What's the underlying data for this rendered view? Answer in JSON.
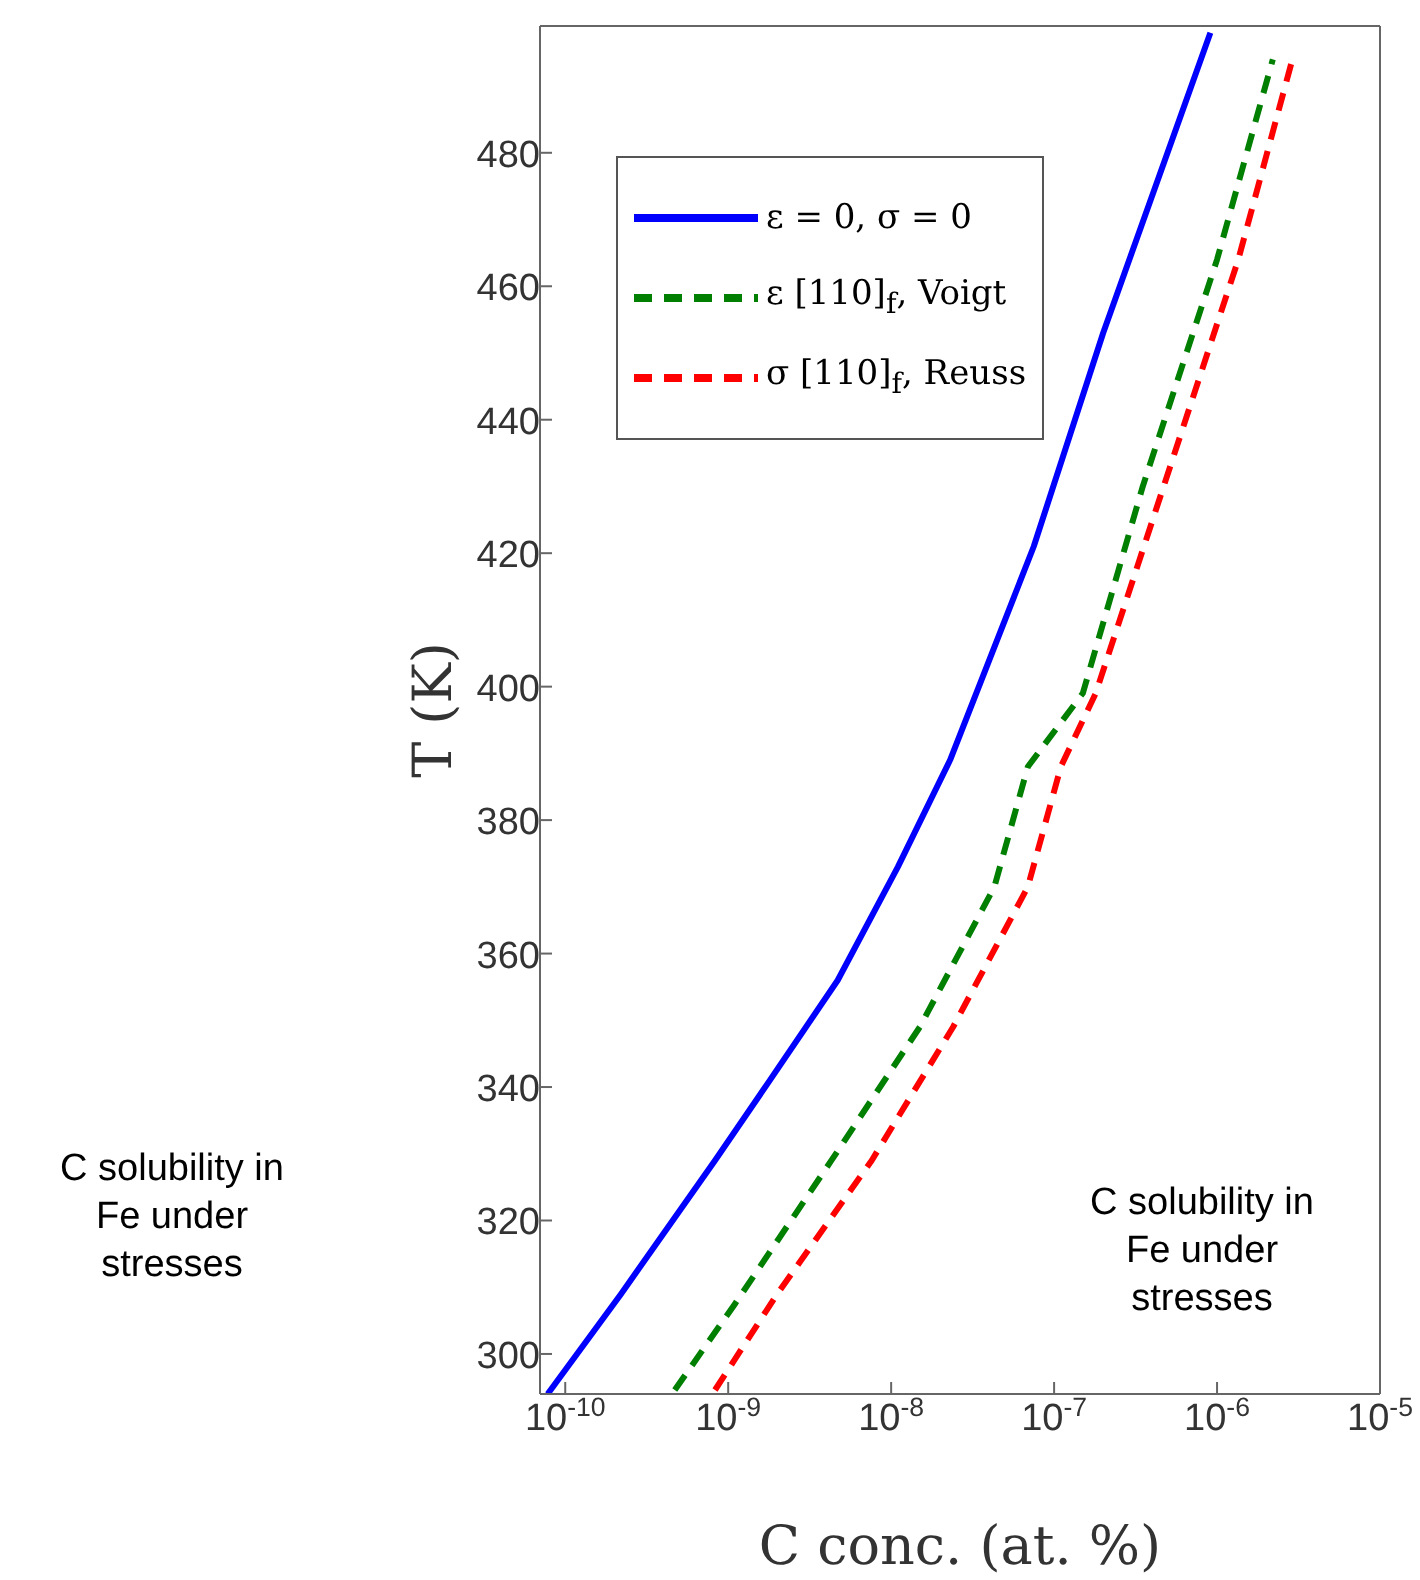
{
  "chart_data": {
    "type": "line",
    "xlabel": "C conc. (at. %)",
    "ylabel": "T (K)",
    "log": "x",
    "xlim": [
      7e-11,
      1e-05
    ],
    "ylim": [
      294,
      499
    ],
    "xticks": [
      {
        "value": 1e-10,
        "label": "10$^{-10}$"
      },
      {
        "value": 1e-09,
        "label": "10$^{-9}$"
      },
      {
        "value": 1e-08,
        "label": "10$^{-8}$"
      },
      {
        "value": 1e-07,
        "label": "10$^{-7}$"
      },
      {
        "value": 1e-06,
        "label": "10$^{-6}$"
      },
      {
        "value": 1e-05,
        "label": "10$^{-5}$"
      }
    ],
    "yticks": [
      300,
      320,
      340,
      360,
      380,
      400,
      420,
      440,
      460,
      480
    ],
    "grid": false,
    "legend": "top",
    "marker": "none",
    "series": [
      {
        "name": "ε = 0, σ = 0",
        "color": "#0000ff",
        "line_style": "solid",
        "x": [
          7.8e-11,
          2.2e-10,
          8.3e-10,
          1.8e-09,
          4.7e-09,
          1.1e-08,
          2.3e-08,
          7.5e-08,
          2e-07,
          9.1e-07
        ],
        "values": [
          294,
          309,
          329,
          341,
          356,
          373,
          389,
          421,
          453,
          498
        ]
      },
      {
        "name": "ε [110]$_{f}$, Voigt",
        "color": "#007f00",
        "line_style": "dashed",
        "x": [
          4.7e-10,
          1.1e-09,
          4.3e-09,
          1.5e-08,
          4.3e-08,
          6.9e-08,
          1.5e-07,
          3.5e-07,
          1e-06,
          2.2e-06
        ],
        "values": [
          294.6,
          307.5,
          329,
          349,
          370,
          388,
          399,
          430,
          464,
          494
        ]
      },
      {
        "name": "σ [110]$_{f}$, Reuss",
        "color": "#ff0000",
        "line_style": "dashed",
        "x": [
          8.3e-10,
          2e-09,
          7.6e-09,
          2.4e-08,
          6.9e-08,
          1.1e-07,
          1.8e-07,
          4.7e-07,
          1.35e-06,
          2.9e-06
        ],
        "values": [
          294.6,
          309,
          329,
          349,
          370,
          388,
          399,
          430,
          464,
          494
        ]
      }
    ],
    "annotations": [
      "C solubility in Fe under stresses",
      "C solubility in Fe under stresses"
    ]
  }
}
